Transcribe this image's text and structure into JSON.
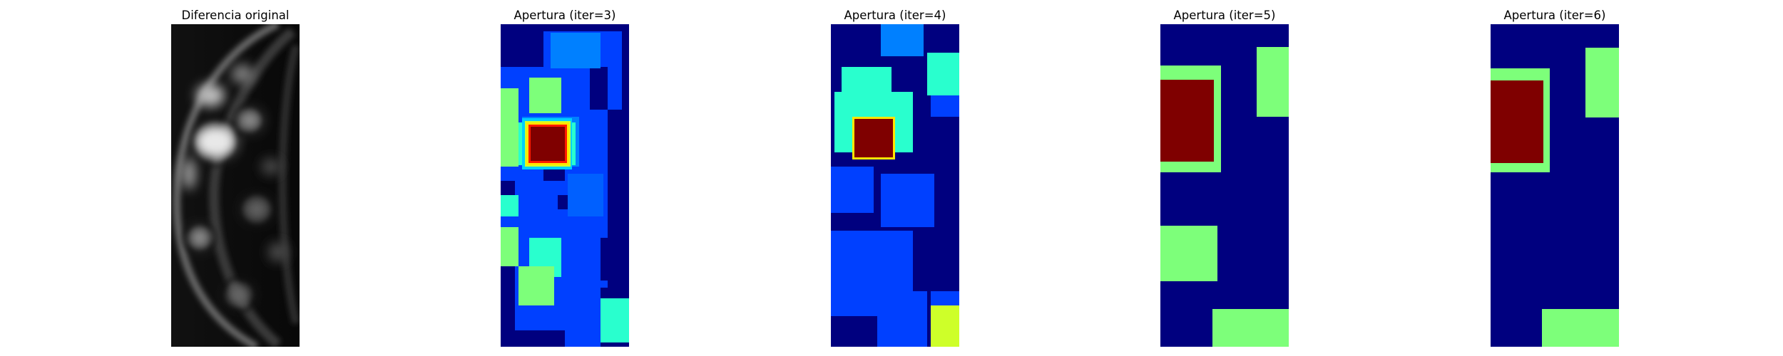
{
  "panels": [
    {
      "title": "Diferencia original",
      "kind": "grayscale"
    },
    {
      "title": "Apertura (iter=3)",
      "kind": "jet"
    },
    {
      "title": "Apertura (iter=4)",
      "kind": "jet"
    },
    {
      "title": "Apertura (iter=5)",
      "kind": "jet"
    },
    {
      "title": "Apertura (iter=6)",
      "kind": "jet"
    }
  ],
  "colors": {
    "background": "#ffffff",
    "jet_dark_blue": "#00007f",
    "jet_blue": "#0040ff",
    "jet_mid_blue": "#0080ff",
    "jet_cyan": "#29ffce",
    "jet_green": "#7dff7a",
    "jet_yellow_green": "#ceff29",
    "jet_yellow": "#ffe600",
    "jet_red": "#ff1a00",
    "jet_dark_red": "#7f0000"
  }
}
